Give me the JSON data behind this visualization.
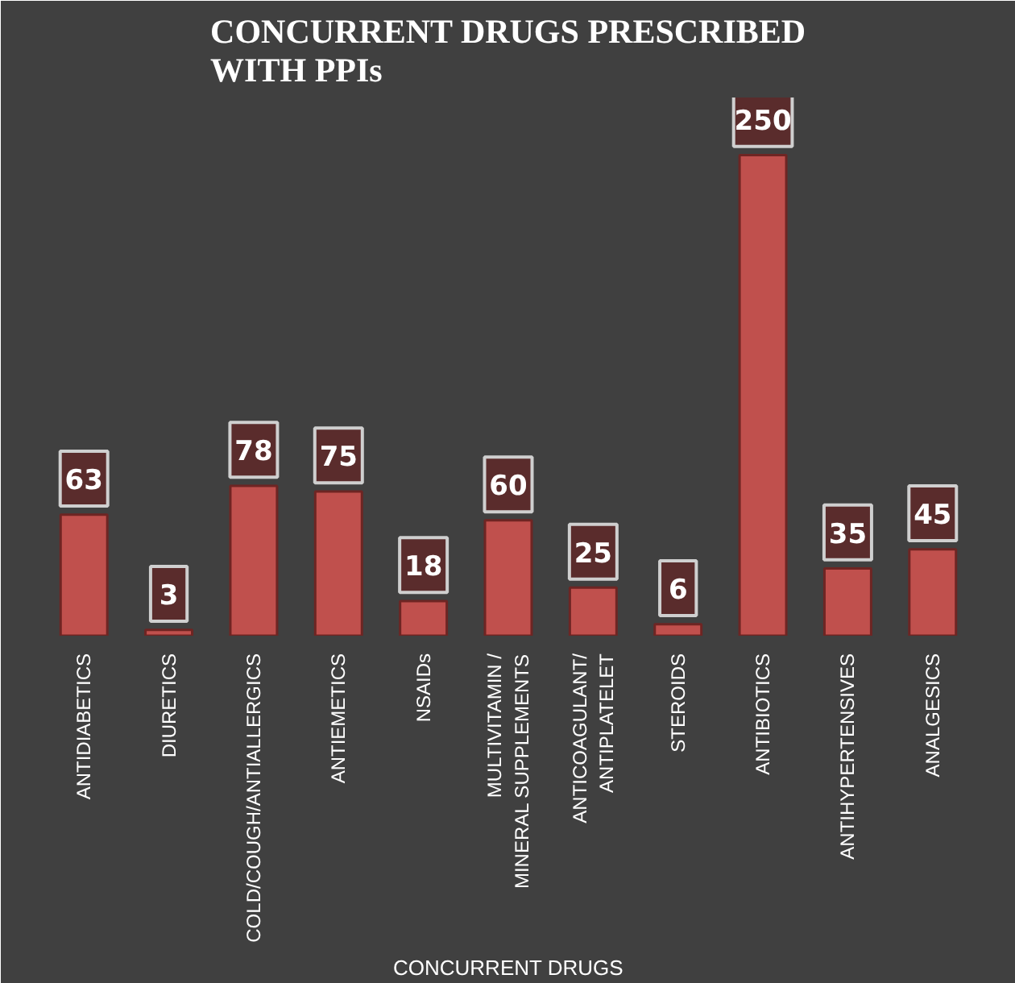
{
  "chart_data": {
    "type": "bar",
    "title": "CONCURRENT DRUGS PRESCRIBED\nWITH PPIs",
    "xlabel": "CONCURRENT DRUGS",
    "categories": [
      "ANTIDIABETICS",
      "DIURETICS",
      "COLD/COUGH/ANTIALLERGICS",
      "ANTIEMETICS",
      "NSAIDs",
      "MULTIVITAMIN / MINERAL SUPPLEMENTS",
      "ANTICOAGULANT/ ANTIPLATELET",
      "STEROIDS",
      "ANTIBIOTICS",
      "ANTIHYPERTENSIVES",
      "ANALGESICS"
    ],
    "values": [
      63,
      3,
      78,
      75,
      18,
      60,
      25,
      6,
      250,
      35,
      45
    ],
    "color": "#c0504d",
    "data_labels": true,
    "grid": false
  }
}
